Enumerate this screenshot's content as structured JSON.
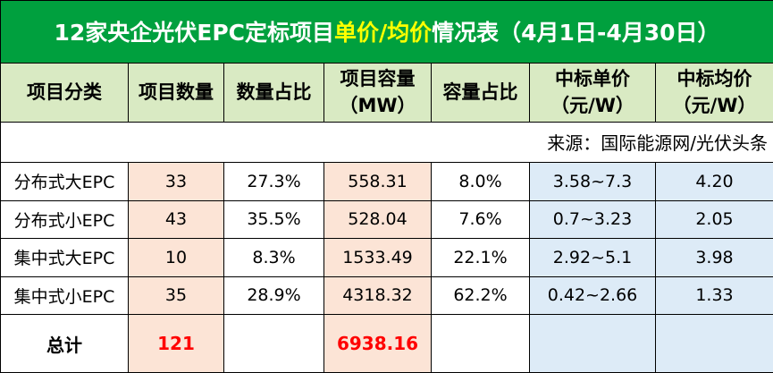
{
  "title": {
    "before": "12家央企光伏EPC定标项目",
    "highlight": "单价/均价",
    "after": "情况表（4月1日-4月30日）"
  },
  "headers": [
    [
      "项目分类"
    ],
    [
      "项目数量"
    ],
    [
      "数量占比"
    ],
    [
      "项目容量",
      "（MW）"
    ],
    [
      "容量占比"
    ],
    [
      "中标单价",
      "（元/W）"
    ],
    [
      "中标均价",
      "（元/W）"
    ]
  ],
  "source": "来源：国际能源网/光伏头条",
  "rows": [
    [
      "分布式大EPC",
      "33",
      "27.3%",
      "558.31",
      "8.0%",
      "3.58~7.3",
      "4.20"
    ],
    [
      "分布式小EPC",
      "43",
      "35.5%",
      "528.04",
      "7.6%",
      "0.7~3.23",
      "2.05"
    ],
    [
      "集中式大EPC",
      "10",
      "8.3%",
      "1533.49",
      "22.1%",
      "2.92~5.1",
      "3.98"
    ],
    [
      "集中式小EPC",
      "35",
      "28.9%",
      "4318.32",
      "62.2%",
      "0.42~2.66",
      "1.33"
    ]
  ],
  "total": {
    "label": "总计",
    "count": "121",
    "capacity": "6938.16"
  }
}
